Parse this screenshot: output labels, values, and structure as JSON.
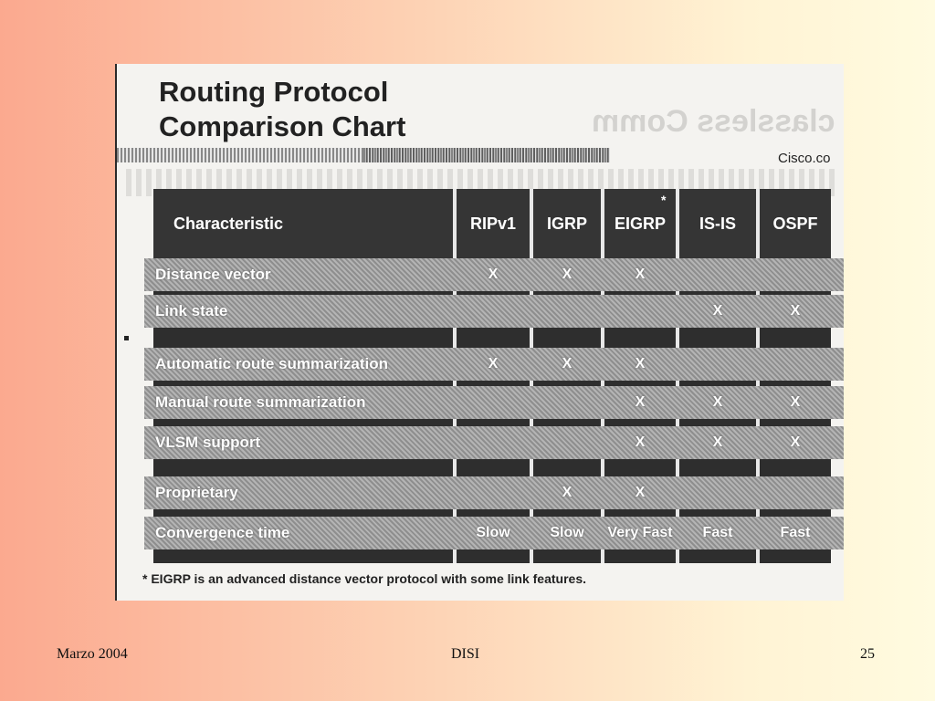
{
  "chart": {
    "title_line1": "Routing Protocol",
    "title_line2": "Comparison Chart",
    "brand": "Cisco.co",
    "header": [
      "Characteristic",
      "RIPv1",
      "IGRP",
      "EIGRP",
      "IS-IS",
      "OSPF"
    ],
    "eigrp_marker": "*",
    "rows": [
      {
        "label": "Distance vector",
        "cells": [
          "X",
          "X",
          "X",
          "",
          ""
        ]
      },
      {
        "label": "Link state",
        "cells": [
          "",
          "",
          "",
          "X",
          "X"
        ]
      },
      {
        "label": "Automatic route summarization",
        "cells": [
          "X",
          "X",
          "X",
          "",
          ""
        ]
      },
      {
        "label": "Manual route summarization",
        "cells": [
          "",
          "",
          "X",
          "X",
          "X"
        ]
      },
      {
        "label": "VLSM support",
        "cells": [
          "",
          "",
          "X",
          "X",
          "X"
        ]
      },
      {
        "label": "Proprietary",
        "cells": [
          "",
          "X",
          "X",
          "",
          ""
        ]
      },
      {
        "label": "Convergence time",
        "cells": [
          "Slow",
          "Slow",
          "Very Fast",
          "Fast",
          "Fast"
        ]
      }
    ],
    "footnote": "* EIGRP is an advanced distance vector protocol with some link features."
  },
  "footer": {
    "left": "Marzo 2004",
    "center": "DISI",
    "right": "25"
  },
  "colors": {
    "background_left": "#fba98f",
    "background_right": "#fffbe0",
    "table_dark": "#2e2e2e"
  }
}
